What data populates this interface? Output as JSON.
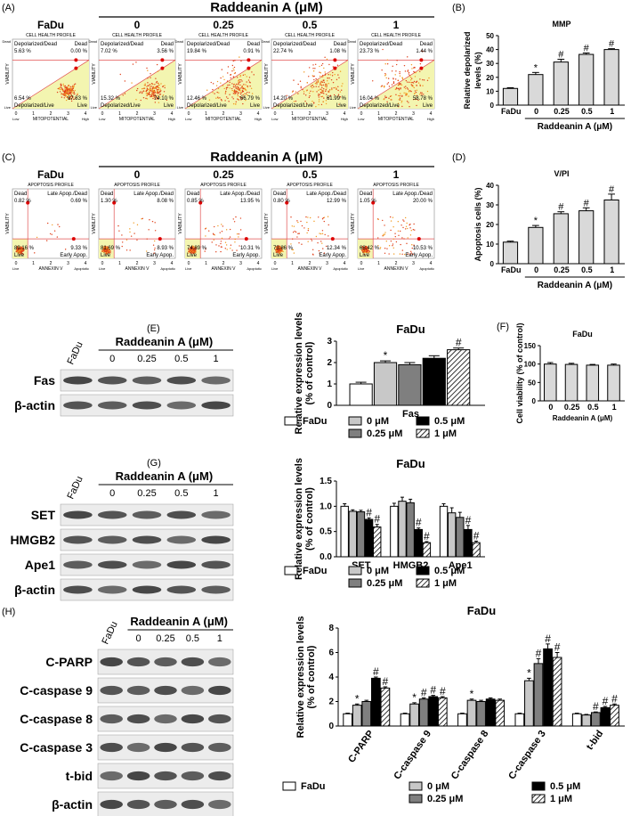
{
  "flow_panels": [
    {
      "label": "(A)",
      "treatment": "Raddeanin A (μM)",
      "plot_title": "CELL HEALTH PROFILE",
      "x_label": "MITOPOTENTIAL",
      "y_label": "VIABILITY",
      "axis_ticks": [
        "0",
        "1",
        "2",
        "3",
        "4"
      ],
      "x_ends": [
        "Low",
        "High"
      ],
      "y_ends": [
        "Live",
        "Dead"
      ],
      "quadrants": [
        "Depolarized/Dead",
        "Dead",
        "Depolarized/Live",
        "Live"
      ],
      "samples": [
        {
          "name": "FaDu",
          "percents": [
            "5.63 %",
            "0.00 %",
            "6.54 %",
            "87.83 %"
          ]
        },
        {
          "name": "0",
          "percents": [
            "7.02 %",
            "3.56 %",
            "15.32 %",
            "74.10 %"
          ]
        },
        {
          "name": "0.25",
          "percents": [
            "19.84 %",
            "0.91 %",
            "12.46 %",
            "66.79 %"
          ]
        },
        {
          "name": "0.5",
          "percents": [
            "22.74 %",
            "1.08 %",
            "14.20 %",
            "61.99 %"
          ]
        },
        {
          "name": "1",
          "percents": [
            "23.73 %",
            "1.44 %",
            "16.04 %",
            "58.78 %"
          ]
        }
      ]
    },
    {
      "label": "(C)",
      "treatment": "Raddeanin A (μM)",
      "plot_title": "APOPTOSIS PROFILE",
      "x_label": "ANNEXIN V",
      "y_label": "VIABILITY",
      "axis_ticks": [
        "0",
        "1",
        "2",
        "3",
        "4"
      ],
      "x_ends": [
        "Live",
        "Apoptotic"
      ],
      "quadrants": [
        "Dead",
        "Late Apop./Dead",
        "Live",
        "Early Apop."
      ],
      "samples": [
        {
          "name": "FaDu",
          "percents": [
            "0.82 %",
            "0.69 %",
            "89.16 %",
            "9.33 %"
          ]
        },
        {
          "name": "0",
          "percents": [
            "1.30 %",
            "8.08 %",
            "81.69 %",
            "8.93 %"
          ]
        },
        {
          "name": "0.25",
          "percents": [
            "0.85 %",
            "13.95 %",
            "74.89 %",
            "10.31 %"
          ]
        },
        {
          "name": "0.5",
          "percents": [
            "0.80 %",
            "12.99 %",
            "73.86 %",
            "12.34 %"
          ]
        },
        {
          "name": "1",
          "percents": [
            "1.05 %",
            "20.00 %",
            "68.42 %",
            "10.53 %"
          ]
        }
      ]
    }
  ],
  "blots": [
    {
      "label": "(E)",
      "sample": "FaDu",
      "treatment": "Raddeanin A (μM)",
      "doses": [
        "0",
        "0.25",
        "0.5",
        "1"
      ],
      "rows": [
        "Fas",
        "β-actin"
      ]
    },
    {
      "label": "(G)",
      "sample": "FaDu",
      "treatment": "Raddeanin A (μM)",
      "doses": [
        "0",
        "0.25",
        "0.5",
        "1"
      ],
      "rows": [
        "SET",
        "HMGB2",
        "Ape1",
        "β-actin"
      ]
    },
    {
      "label": "(H)",
      "sample": "FaDu",
      "treatment": "Raddeanin A (μM)",
      "doses": [
        "0",
        "0.25",
        "0.5",
        "1"
      ],
      "rows": [
        "C-PARP",
        "C-caspase 9",
        "C-caspase 8",
        "C-caspase 3",
        "t-bid",
        "β-actin"
      ]
    }
  ],
  "chart_data": [
    {
      "type": "bar",
      "panel": "(B)",
      "title": "MMP",
      "y_label": [
        "Relative depolarized",
        "levels (%)"
      ],
      "categories": [
        "FaDu",
        "0",
        "0.25",
        "0.5",
        "1"
      ],
      "values": [
        12,
        22,
        31,
        36.5,
        40
      ],
      "errors": [
        0.5,
        1.5,
        2,
        1,
        0.6
      ],
      "annotations": [
        null,
        "*",
        "#",
        "#",
        "#"
      ],
      "color": "#d9d9d9",
      "group_label": "Raddeanin A (μM)",
      "ylim": [
        0,
        50
      ],
      "yticks": [
        0,
        10,
        20,
        30,
        40,
        50
      ]
    },
    {
      "type": "bar",
      "panel": "(D)",
      "title": "V/PI",
      "y_label": [
        "Apoptosis cells (%)"
      ],
      "categories": [
        "FaDu",
        "0",
        "0.25",
        "0.5",
        "1"
      ],
      "values": [
        11,
        18.5,
        25.5,
        27,
        32.5
      ],
      "errors": [
        0.5,
        1,
        1,
        1.5,
        3
      ],
      "annotations": [
        null,
        "*",
        "#",
        "#",
        "#"
      ],
      "color": "#d9d9d9",
      "group_label": "Raddeanin A (μM)",
      "ylim": [
        0,
        40
      ],
      "yticks": [
        0,
        10,
        20,
        30,
        40
      ]
    },
    {
      "type": "bar",
      "title": "FaDu",
      "y_label": [
        "Relative expression levels",
        "(% of control)"
      ],
      "categories": [
        "Fas"
      ],
      "series": [
        {
          "name": "FaDu",
          "color": "#ffffff",
          "values": [
            1.0
          ],
          "errors": [
            0.08
          ],
          "annotations": [
            null
          ]
        },
        {
          "name": "0 μM",
          "color": "#c8c8c8",
          "values": [
            2.0
          ],
          "errors": [
            0.08
          ],
          "annotations": [
            "*"
          ]
        },
        {
          "name": "0.25 μM",
          "color": "#7f7f7f",
          "values": [
            1.9
          ],
          "errors": [
            0.1
          ],
          "annotations": [
            null
          ]
        },
        {
          "name": "0.5 μM",
          "color": "#000000",
          "values": [
            2.2
          ],
          "errors": [
            0.12
          ],
          "annotations": [
            null
          ]
        },
        {
          "name": "1 μM",
          "color": "#000000",
          "pattern": "hatch",
          "values": [
            2.6
          ],
          "errors": [
            0.08
          ],
          "annotations": [
            "#"
          ]
        }
      ],
      "ylim": [
        0,
        3
      ],
      "yticks": [
        0,
        1,
        2,
        3
      ]
    },
    {
      "type": "bar",
      "panel": "(F)",
      "title": "FaDu",
      "y_label": [
        "Cell viability (% of control)"
      ],
      "x_label": "Raddeanin A (μM)",
      "categories": [
        "0",
        "0.25",
        "0.5",
        "1"
      ],
      "values": [
        100,
        99,
        97,
        97
      ],
      "errors": [
        4,
        3,
        2,
        3
      ],
      "color": "#d9d9d9",
      "ylim": [
        0,
        150
      ],
      "yticks": [
        0,
        50,
        100,
        150
      ]
    },
    {
      "type": "bar",
      "title": "FaDu",
      "y_label": [
        "Relative expression levels",
        "(% of control)"
      ],
      "categories": [
        "SET",
        "HMGB2",
        "Ape1"
      ],
      "series": [
        {
          "name": "FaDu",
          "color": "#ffffff",
          "values": [
            1.0,
            1.0,
            1.0
          ],
          "errors": [
            0.05,
            0.06,
            0.05
          ],
          "annotations": [
            null,
            null,
            null
          ]
        },
        {
          "name": "0 μM",
          "color": "#c8c8c8",
          "values": [
            0.9,
            1.1,
            0.87
          ],
          "errors": [
            0.03,
            0.08,
            0.1
          ],
          "annotations": [
            null,
            null,
            null
          ]
        },
        {
          "name": "0.25 μM",
          "color": "#7f7f7f",
          "values": [
            0.89,
            1.07,
            0.78
          ],
          "errors": [
            0.03,
            0.07,
            0.1
          ],
          "annotations": [
            null,
            null,
            null
          ]
        },
        {
          "name": "0.5 μM",
          "color": "#000000",
          "values": [
            0.74,
            0.54,
            0.54
          ],
          "errors": [
            0.03,
            0.03,
            0.08
          ],
          "annotations": [
            "#",
            "#",
            "#"
          ]
        },
        {
          "name": "1 μM",
          "color": "#000000",
          "pattern": "hatch",
          "values": [
            0.59,
            0.28,
            0.28
          ],
          "errors": [
            0.05,
            0.02,
            0.03
          ],
          "annotations": [
            "#",
            "#",
            "#"
          ]
        }
      ],
      "ylim": [
        0,
        1.5
      ],
      "yticks": [
        {
          "value": 0,
          "label": "0.0"
        },
        0.5,
        {
          "value": 1,
          "label": "1.0"
        },
        1.5
      ]
    },
    {
      "type": "bar",
      "title": "FaDu",
      "y_label": [
        "Relative expression levels",
        "(% of control)"
      ],
      "categories": [
        "C-PARP",
        "C-caspase 9",
        "C-caspase 8",
        "C-caspase 3",
        "t-bid"
      ],
      "series": [
        {
          "name": "FaDu",
          "color": "#ffffff",
          "values": [
            1,
            1,
            1,
            1,
            1
          ],
          "errors": [
            0.05,
            0.05,
            0.05,
            0.05,
            0.05
          ],
          "annotations": [
            null,
            null,
            null,
            null,
            null
          ]
        },
        {
          "name": "0 μM",
          "color": "#c8c8c8",
          "values": [
            1.7,
            1.8,
            2.1,
            3.7,
            0.9
          ],
          "errors": [
            0.1,
            0.1,
            0.1,
            0.2,
            0.05
          ],
          "annotations": [
            "*",
            "*",
            "*",
            "*",
            null
          ]
        },
        {
          "name": "0.25 μM",
          "color": "#7f7f7f",
          "values": [
            2.0,
            2.2,
            2.0,
            5.1,
            1.1
          ],
          "errors": [
            0.1,
            0.1,
            0.1,
            0.4,
            0.05
          ],
          "annotations": [
            null,
            "#",
            null,
            "#",
            "#"
          ]
        },
        {
          "name": "0.5 μM",
          "color": "#000000",
          "values": [
            3.9,
            2.4,
            2.2,
            6.3,
            1.5
          ],
          "errors": [
            0.1,
            0.1,
            0.1,
            0.4,
            0.1
          ],
          "annotations": [
            "#",
            "#",
            null,
            "#",
            "#"
          ]
        },
        {
          "name": "1 μM",
          "color": "#000000",
          "pattern": "hatch",
          "values": [
            3.1,
            2.3,
            2.1,
            5.6,
            1.7
          ],
          "errors": [
            0.1,
            0.1,
            0.1,
            0.4,
            0.1
          ],
          "annotations": [
            "#",
            "#",
            null,
            "#",
            "#"
          ]
        }
      ],
      "ylim": [
        0,
        8
      ],
      "yticks": [
        0,
        2,
        4,
        6,
        8
      ]
    }
  ]
}
